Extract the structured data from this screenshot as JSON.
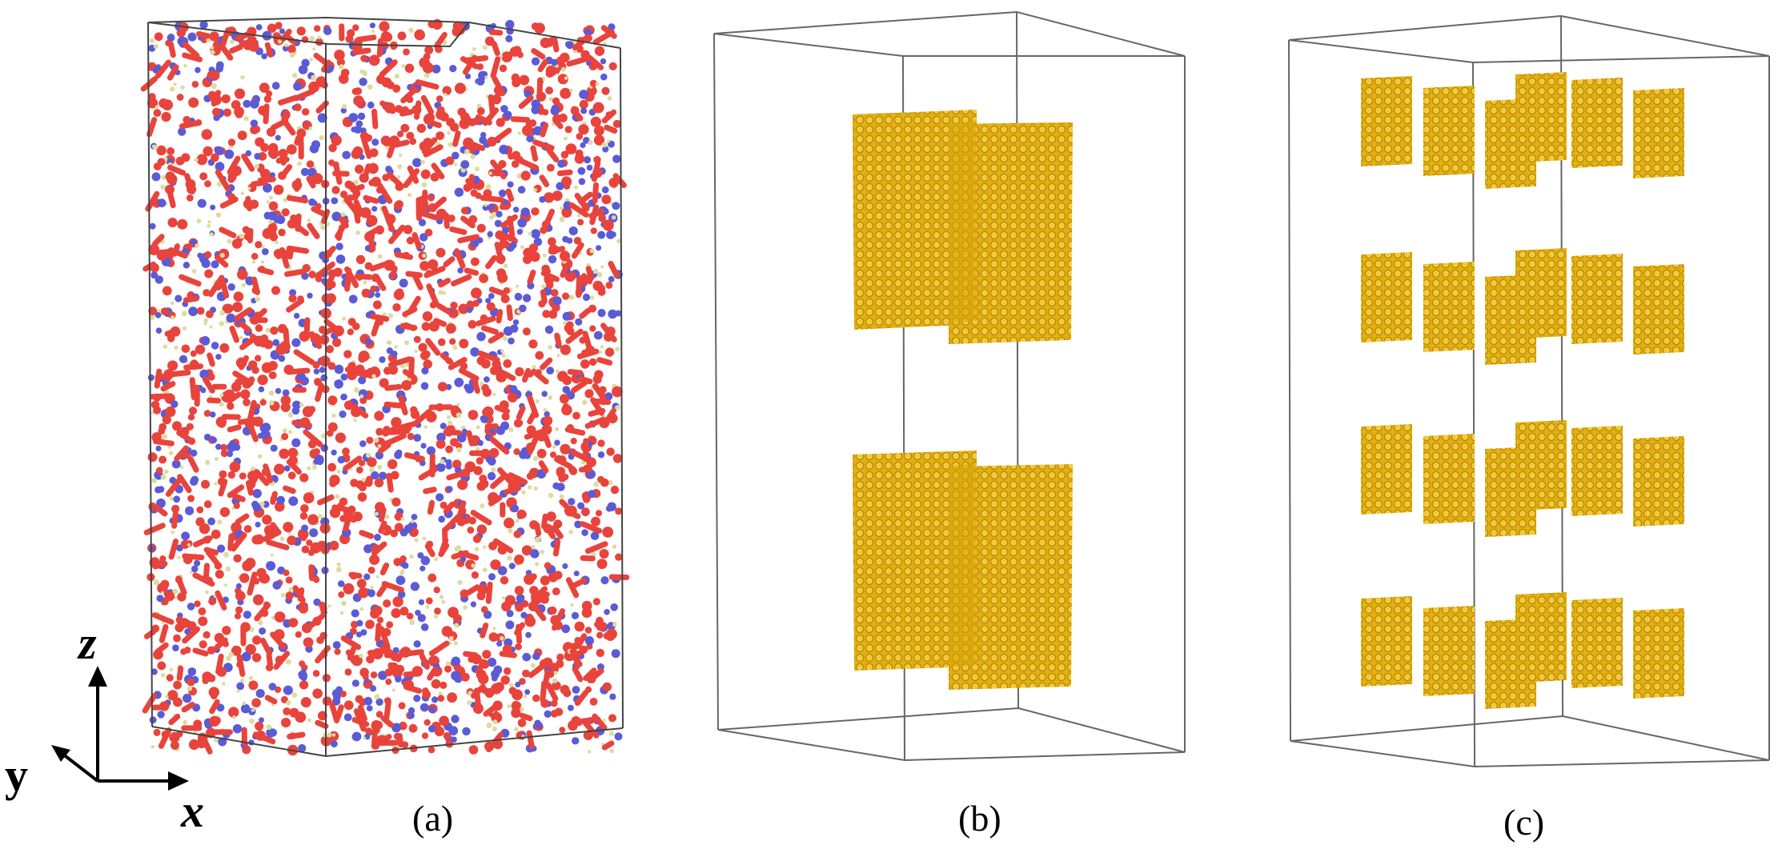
{
  "panels": [
    {
      "id": "a",
      "caption": "(a)",
      "content": "atomic configuration (red, blue, yellow atoms)"
    },
    {
      "id": "b",
      "caption": "(b)",
      "content": "two layers of yellow sheets"
    },
    {
      "id": "c",
      "caption": "(c)",
      "content": "four layers of yellow sheets"
    }
  ],
  "axes": {
    "z": "z",
    "y": "y",
    "x": "x"
  },
  "colors": {
    "red_atom": "#e8443c",
    "blue_atom": "#5b5bd6",
    "pale_atom": "#dcdca0",
    "gold": "#e6b412",
    "gold_edge": "#b8860b",
    "box_line": "#555555"
  }
}
